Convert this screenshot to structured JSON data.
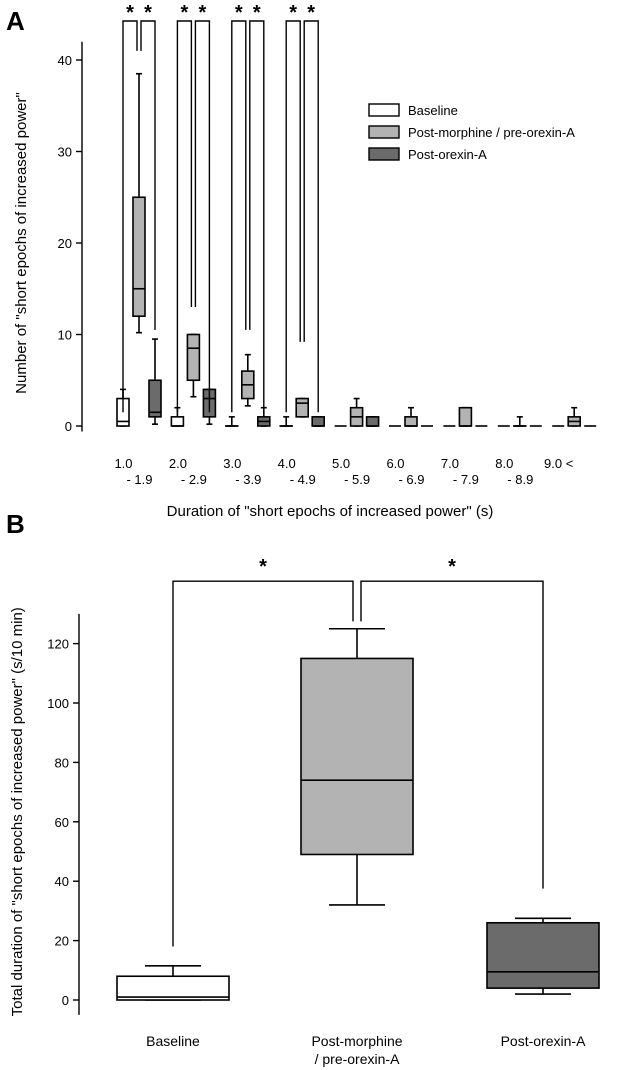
{
  "figure": {
    "panel_a_label": "A",
    "panel_b_label": "B"
  },
  "colors": {
    "baseline": "#ffffff",
    "post_morphine": "#b3b3b3",
    "post_orexin": "#6b6b6b",
    "stroke": "#000000"
  },
  "chart_data": [
    {
      "type": "box",
      "panel": "A",
      "title": "",
      "ylabel": "Number of \"short epochs of increased power\"",
      "xlabel": "Duration of \"short epochs of increased power\" (s)",
      "ylim": [
        0,
        42
      ],
      "yticks": [
        0,
        10,
        20,
        30,
        40
      ],
      "grid": false,
      "legend": "top-right",
      "categories": [
        {
          "line1": "1.0",
          "line2": "- 1.9"
        },
        {
          "line1": "2.0",
          "line2": "- 2.9"
        },
        {
          "line1": "3.0",
          "line2": "- 3.9"
        },
        {
          "line1": "4.0",
          "line2": "- 4.9"
        },
        {
          "line1": "5.0",
          "line2": "- 5.9"
        },
        {
          "line1": "6.0",
          "line2": "- 6.9"
        },
        {
          "line1": "7.0",
          "line2": "- 7.9"
        },
        {
          "line1": "8.0",
          "line2": "- 8.9"
        },
        {
          "line1": "9.0 <",
          "line2": ""
        }
      ],
      "series": [
        {
          "name": "Baseline",
          "color": "#ffffff",
          "boxes": [
            {
              "min": 0,
              "q1": 0,
              "median": 0.5,
              "q3": 3,
              "max": 4
            },
            {
              "min": 0,
              "q1": 0,
              "median": 0,
              "q3": 1,
              "max": 2
            },
            {
              "min": 0,
              "q1": 0,
              "median": 0,
              "q3": 0,
              "max": 1
            },
            {
              "min": 0,
              "q1": 0,
              "median": 0,
              "q3": 0,
              "max": 1
            },
            {
              "min": 0,
              "q1": 0,
              "median": 0,
              "q3": 0,
              "max": 0
            },
            {
              "min": 0,
              "q1": 0,
              "median": 0,
              "q3": 0,
              "max": 0
            },
            {
              "min": 0,
              "q1": 0,
              "median": 0,
              "q3": 0,
              "max": 0
            },
            {
              "min": 0,
              "q1": 0,
              "median": 0,
              "q3": 0,
              "max": 0
            },
            {
              "min": 0,
              "q1": 0,
              "median": 0,
              "q3": 0,
              "max": 0
            }
          ]
        },
        {
          "name": "Post-morphine / pre-orexin-A",
          "color": "#b3b3b3",
          "boxes": [
            {
              "min": 10.2,
              "q1": 12,
              "median": 15,
              "q3": 25,
              "max": 38.5
            },
            {
              "min": 3.2,
              "q1": 5,
              "median": 8.5,
              "q3": 10,
              "max": 10
            },
            {
              "min": 2.2,
              "q1": 3,
              "median": 4.5,
              "q3": 6,
              "max": 7.8
            },
            {
              "min": 1,
              "q1": 1,
              "median": 2.5,
              "q3": 3,
              "max": 3
            },
            {
              "min": 0,
              "q1": 0,
              "median": 1,
              "q3": 2,
              "max": 3
            },
            {
              "min": 0,
              "q1": 0,
              "median": 0,
              "q3": 1,
              "max": 2
            },
            {
              "min": 0,
              "q1": 0,
              "median": 0,
              "q3": 2,
              "max": 2
            },
            {
              "min": 0,
              "q1": 0,
              "median": 0,
              "q3": 0,
              "max": 1
            },
            {
              "min": 0,
              "q1": 0,
              "median": 0.5,
              "q3": 1,
              "max": 2
            }
          ]
        },
        {
          "name": "Post-orexin-A",
          "color": "#6b6b6b",
          "boxes": [
            {
              "min": 0.2,
              "q1": 1,
              "median": 1.5,
              "q3": 5,
              "max": 9.5
            },
            {
              "min": 0.2,
              "q1": 1,
              "median": 3,
              "q3": 4,
              "max": 4
            },
            {
              "min": 0,
              "q1": 0,
              "median": 0.5,
              "q3": 1,
              "max": 2
            },
            {
              "min": 0,
              "q1": 0,
              "median": 0,
              "q3": 1,
              "max": 1
            },
            {
              "min": 0,
              "q1": 0,
              "median": 0,
              "q3": 1,
              "max": 1
            },
            {
              "min": 0,
              "q1": 0,
              "median": 0,
              "q3": 0,
              "max": 0
            },
            {
              "min": 0,
              "q1": 0,
              "median": 0,
              "q3": 0,
              "max": 0
            },
            {
              "min": 0,
              "q1": 0,
              "median": 0,
              "q3": 0,
              "max": 0
            },
            {
              "min": 0,
              "q1": 0,
              "median": 0,
              "q3": 0,
              "max": 0
            }
          ]
        }
      ],
      "significance": [
        {
          "category": 0,
          "label": "*",
          "pair": [
            "Baseline",
            "Post-morphine / pre-orexin-A"
          ],
          "left_y": 1.5,
          "right_y": 41
        },
        {
          "category": 0,
          "label": "*",
          "pair": [
            "Post-morphine / pre-orexin-A",
            "Post-orexin-A"
          ],
          "left_y": 41,
          "right_y": 10.5
        },
        {
          "category": 1,
          "label": "*",
          "pair": [
            "Baseline",
            "Post-morphine / pre-orexin-A"
          ],
          "left_y": 1.5,
          "right_y": 13
        },
        {
          "category": 1,
          "label": "*",
          "pair": [
            "Post-morphine / pre-orexin-A",
            "Post-orexin-A"
          ],
          "left_y": 13,
          "right_y": 1.5
        },
        {
          "category": 2,
          "label": "*",
          "pair": [
            "Baseline",
            "Post-morphine / pre-orexin-A"
          ],
          "left_y": 1.5,
          "right_y": 10.5
        },
        {
          "category": 2,
          "label": "*",
          "pair": [
            "Post-morphine / pre-orexin-A",
            "Post-orexin-A"
          ],
          "left_y": 10.5,
          "right_y": 1.5
        },
        {
          "category": 3,
          "label": "*",
          "pair": [
            "Baseline",
            "Post-morphine / pre-orexin-A"
          ],
          "left_y": 1.5,
          "right_y": 9.2
        },
        {
          "category": 3,
          "label": "*",
          "pair": [
            "Post-morphine / pre-orexin-A",
            "Post-orexin-A"
          ],
          "left_y": 9.2,
          "right_y": 1.5
        }
      ]
    },
    {
      "type": "box",
      "panel": "B",
      "title": "",
      "ylabel": "Total duration of \"short epochs of increased power\" (s/10 min)",
      "xlabel": "",
      "ylim": [
        -5,
        130
      ],
      "yticks": [
        0,
        20,
        40,
        60,
        80,
        100,
        120
      ],
      "grid": false,
      "categories": [
        {
          "line1": "Baseline",
          "line2": ""
        },
        {
          "line1": "Post-morphine",
          "line2": "/ pre-orexin-A"
        },
        {
          "line1": "Post-orexin-A",
          "line2": ""
        }
      ],
      "boxes": [
        {
          "color": "#ffffff",
          "min": 0,
          "q1": 0,
          "median": 1,
          "q3": 8,
          "max": 11.5
        },
        {
          "color": "#b3b3b3",
          "min": 32,
          "q1": 49,
          "median": 74,
          "q3": 115,
          "max": 125
        },
        {
          "color": "#6b6b6b",
          "min": 2,
          "q1": 4,
          "median": 9.5,
          "q3": 26,
          "max": 27.5
        }
      ],
      "significance": [
        {
          "label": "*",
          "from": 0,
          "to": 1,
          "from_y": 18,
          "to_y": 127.5,
          "bar_y": 141
        },
        {
          "label": "*",
          "from": 1,
          "to": 2,
          "from_y": 127.5,
          "to_y": 37.5,
          "bar_y": 141
        }
      ]
    }
  ]
}
